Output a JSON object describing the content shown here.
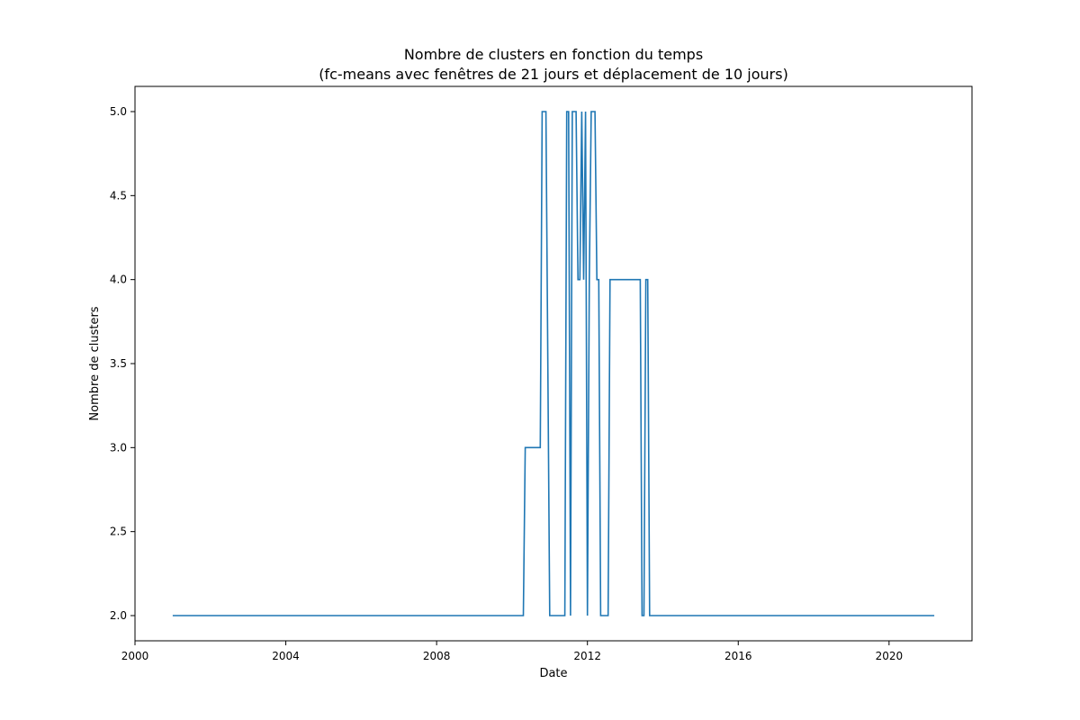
{
  "chart_data": {
    "type": "line",
    "title": "Nombre de clusters en fonction du temps",
    "subtitle": "(fc-means avec fenêtres de 21 jours et déplacement de 10 jours)",
    "xlabel": "Date",
    "ylabel": "Nombre de clusters",
    "xlim": [
      2000.0,
      2022.2
    ],
    "ylim": [
      1.85,
      5.15
    ],
    "grid": false,
    "legend": "none",
    "x_ticks": [
      2000,
      2004,
      2008,
      2012,
      2016,
      2020
    ],
    "y_ticks": [
      2.0,
      2.5,
      3.0,
      3.5,
      4.0,
      4.5,
      5.0
    ],
    "y_tick_labels": [
      "2.0",
      "2.5",
      "3.0",
      "3.5",
      "4.0",
      "4.5",
      "5.0"
    ],
    "series": [
      {
        "color": "#1f77b4",
        "points": [
          [
            2001.0,
            2
          ],
          [
            2010.3,
            2
          ],
          [
            2010.35,
            3
          ],
          [
            2010.75,
            3
          ],
          [
            2010.8,
            5
          ],
          [
            2010.9,
            5
          ],
          [
            2011.0,
            2
          ],
          [
            2011.4,
            2
          ],
          [
            2011.45,
            5
          ],
          [
            2011.5,
            5
          ],
          [
            2011.55,
            2
          ],
          [
            2011.6,
            5
          ],
          [
            2011.7,
            5
          ],
          [
            2011.75,
            4
          ],
          [
            2011.8,
            4
          ],
          [
            2011.85,
            5
          ],
          [
            2011.9,
            4
          ],
          [
            2011.95,
            5
          ],
          [
            2012.0,
            2
          ],
          [
            2012.05,
            4
          ],
          [
            2012.1,
            5
          ],
          [
            2012.2,
            5
          ],
          [
            2012.25,
            4
          ],
          [
            2012.3,
            4
          ],
          [
            2012.35,
            2
          ],
          [
            2012.55,
            2
          ],
          [
            2012.6,
            4
          ],
          [
            2013.2,
            4
          ],
          [
            2013.4,
            4
          ],
          [
            2013.45,
            2
          ],
          [
            2013.5,
            2
          ],
          [
            2013.55,
            4
          ],
          [
            2013.6,
            4
          ],
          [
            2013.65,
            2
          ],
          [
            2021.2,
            2
          ]
        ]
      }
    ]
  }
}
